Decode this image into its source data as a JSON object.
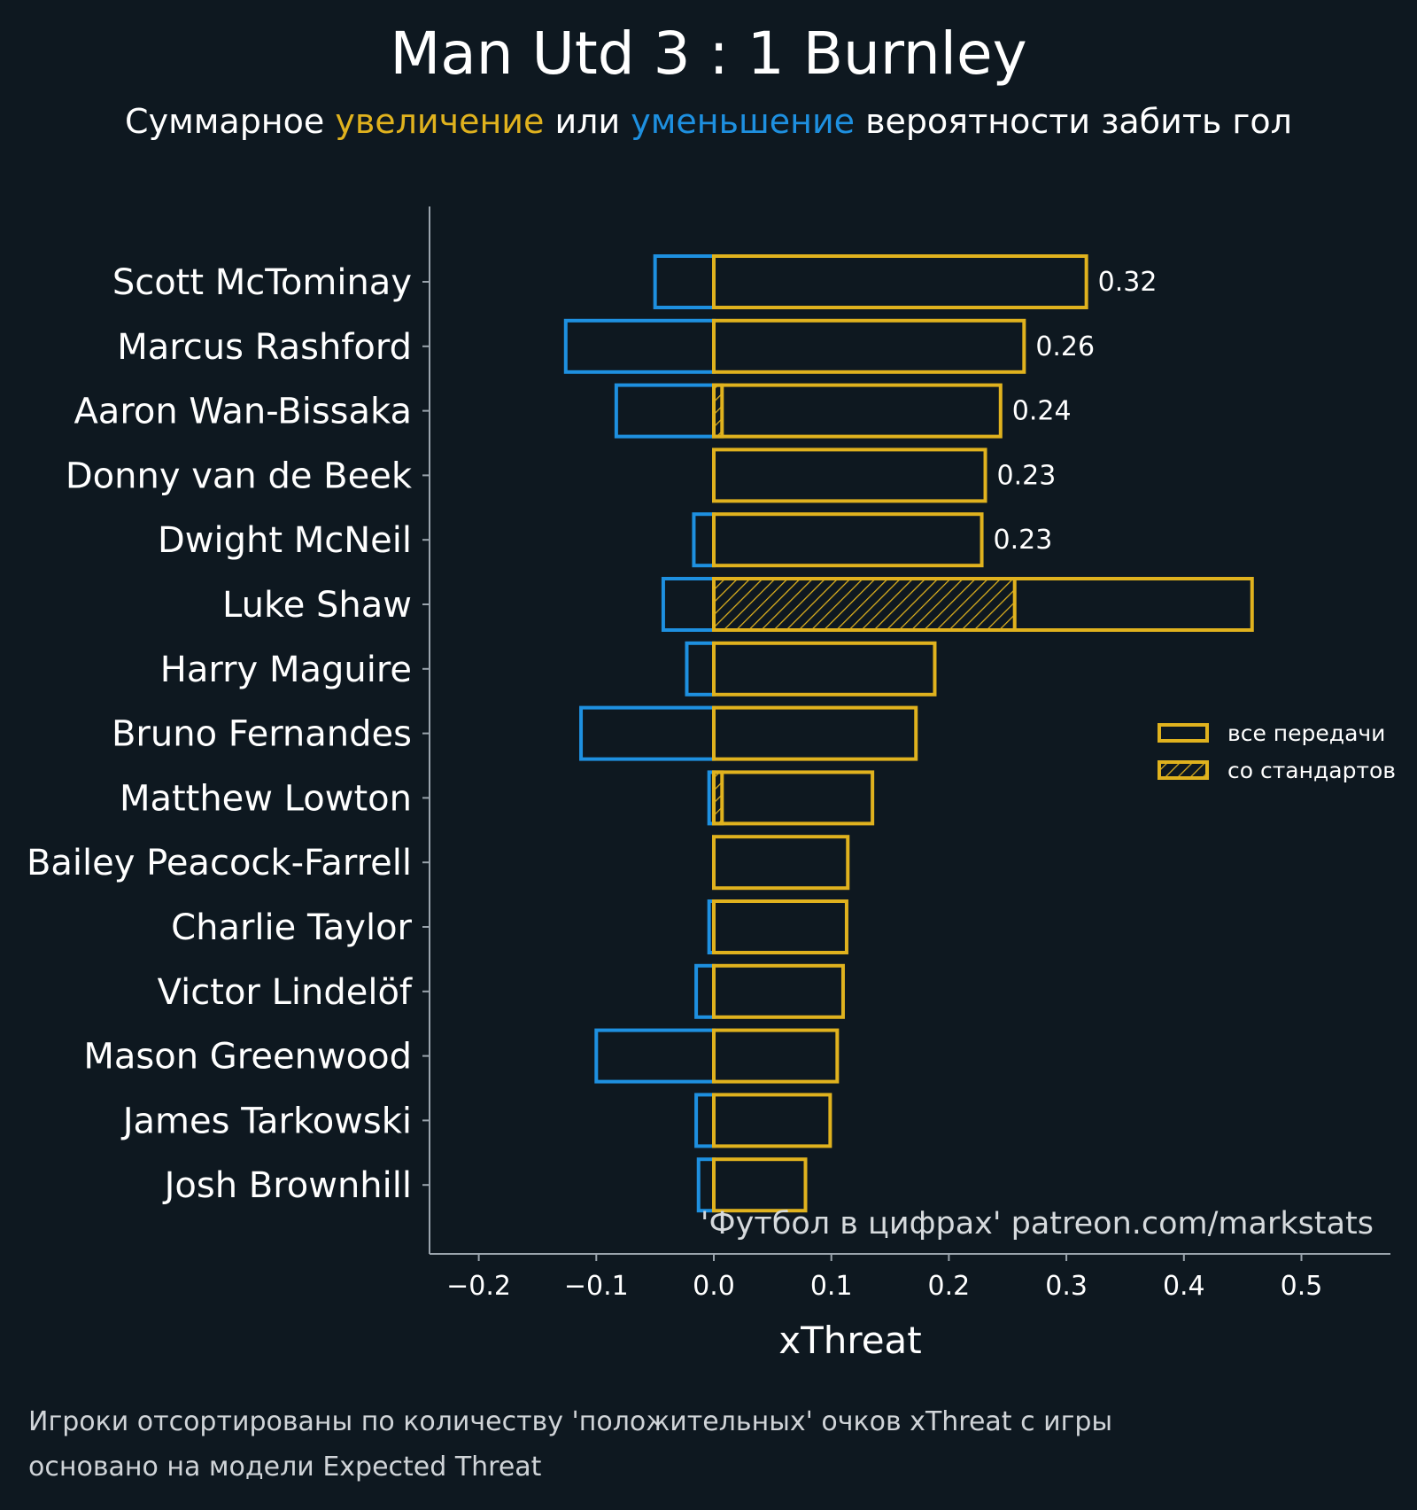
{
  "chart_data": {
    "type": "bar",
    "orientation": "horizontal",
    "title": "Man Utd 3 : 1 Burnley",
    "subtitle": {
      "prefix": "Суммарное ",
      "positive_word": "увеличение",
      "middle": " или ",
      "negative_word": "уменьшение",
      "suffix": " вероятности забить гол"
    },
    "xlabel": "xThreat",
    "ylabel": "",
    "xlim": [
      -0.245,
      0.575
    ],
    "x_ticks": [
      -0.2,
      -0.1,
      0.0,
      0.1,
      0.2,
      0.3,
      0.4,
      0.5
    ],
    "x_tick_labels": [
      "−0.2",
      "−0.1",
      "0.0",
      "0.1",
      "0.2",
      "0.3",
      "0.4",
      "0.5"
    ],
    "grid": false,
    "categories": [
      "Scott McTominay",
      "Marcus Rashford",
      "Aaron Wan-Bissaka",
      "Donny van de Beek",
      "Dwight McNeil",
      "Luke Shaw",
      "Harry Maguire",
      "Bruno Fernandes",
      "Matthew Lowton",
      "Bailey Peacock-Farrell",
      "Charlie Taylor",
      "Victor Lindelöf",
      "Mason Greenwood",
      "James Tarkowski",
      "Josh Brownhill"
    ],
    "series": [
      {
        "name": "все передачи (положительные)",
        "values": [
          0.317,
          0.264,
          0.244,
          0.231,
          0.228,
          0.458,
          0.188,
          0.172,
          0.135,
          0.114,
          0.113,
          0.11,
          0.105,
          0.099,
          0.078
        ]
      },
      {
        "name": "все передачи (отрицательные)",
        "values": [
          -0.05,
          -0.126,
          -0.083,
          0.0,
          -0.017,
          -0.043,
          -0.023,
          -0.113,
          -0.004,
          0.0,
          -0.004,
          -0.015,
          -0.1,
          -0.015,
          -0.013
        ]
      },
      {
        "name": "со стандартов",
        "values": [
          0,
          0,
          0.007,
          0,
          0,
          0.256,
          0,
          0,
          0.007,
          0,
          0,
          0,
          0,
          0,
          0
        ]
      }
    ],
    "value_labels": [
      "0.32",
      "0.26",
      "0.24",
      "0.23",
      "0.23"
    ],
    "legend": {
      "placement": "right",
      "items": [
        "все передачи",
        "со стандартов"
      ]
    },
    "watermark": "'Футбол в цифрах' patreon.com/markstats",
    "footnotes": [
      "Игроки отсортированы по количеству 'положительных' очков xThreat с игры",
      "основано на модели Expected Threat"
    ],
    "colors": {
      "background": "#0e1820",
      "positive": "#e0b21e",
      "negative": "#1e90e0",
      "text": "#ffffff",
      "muted_text": "#d0d4d8",
      "axis": "#9aa4ad"
    }
  }
}
